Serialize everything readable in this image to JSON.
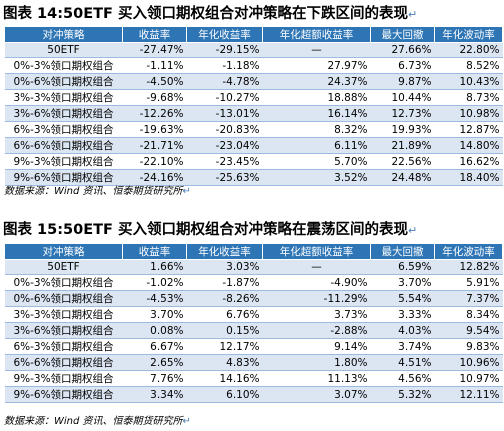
{
  "tables": [
    {
      "title": "图表 14:50ETF 买入领口期权组合对冲策略在下跌区间的表现",
      "headers": [
        "对冲策略",
        "收益率",
        "年化收益率",
        "年化超额收益率",
        "最大回撤",
        "年化波动率"
      ],
      "rows": [
        [
          "50ETF",
          "-27.47%",
          "-29.15%",
          "—",
          "27.66%",
          "22.80%"
        ],
        [
          "0%-3%领口期权组合",
          "-1.11%",
          "-1.18%",
          "27.97%",
          "6.73%",
          "8.52%"
        ],
        [
          "0%-6%领口期权组合",
          "-4.50%",
          "-4.78%",
          "24.37%",
          "9.87%",
          "10.43%"
        ],
        [
          "3%-3%领口期权组合",
          "-9.68%",
          "-10.27%",
          "18.88%",
          "10.44%",
          "8.73%"
        ],
        [
          "3%-6%领口期权组合",
          "-12.26%",
          "-13.01%",
          "16.14%",
          "12.73%",
          "10.98%"
        ],
        [
          "6%-3%领口期权组合",
          "-19.63%",
          "-20.83%",
          "8.32%",
          "19.93%",
          "12.87%"
        ],
        [
          "6%-6%领口期权组合",
          "-21.71%",
          "-23.04%",
          "6.11%",
          "21.89%",
          "14.80%"
        ],
        [
          "9%-3%领口期权组合",
          "-22.10%",
          "-23.45%",
          "5.70%",
          "22.56%",
          "16.62%"
        ],
        [
          "9%-6%领口期权组合",
          "-24.16%",
          "-25.63%",
          "3.52%",
          "24.48%",
          "18.40%"
        ]
      ],
      "source": "数据来源：Wind 资讯、恒泰期货研究所"
    },
    {
      "title": "图表 15:50ETF 买入领口期权组合对冲策略在震荡区间的表现",
      "headers": [
        "对冲策略",
        "收益率",
        "年化收益率",
        "年化超额收益率",
        "最大回撤",
        "年化波动率"
      ],
      "rows": [
        [
          "50ETF",
          "1.66%",
          "3.03%",
          "—",
          "6.59%",
          "12.82%"
        ],
        [
          "0%-3%领口期权组合",
          "-1.02%",
          "-1.87%",
          "-4.90%",
          "3.70%",
          "5.91%"
        ],
        [
          "0%-6%领口期权组合",
          "-4.53%",
          "-8.26%",
          "-11.29%",
          "5.54%",
          "7.37%"
        ],
        [
          "3%-3%领口期权组合",
          "3.70%",
          "6.76%",
          "3.73%",
          "3.33%",
          "8.34%"
        ],
        [
          "3%-6%领口期权组合",
          "0.08%",
          "0.15%",
          "-2.88%",
          "4.03%",
          "9.54%"
        ],
        [
          "6%-3%领口期权组合",
          "6.67%",
          "12.17%",
          "9.14%",
          "3.74%",
          "9.83%"
        ],
        [
          "6%-6%领口期权组合",
          "2.65%",
          "4.83%",
          "1.80%",
          "4.51%",
          "10.96%"
        ],
        [
          "9%-3%领口期权组合",
          "7.76%",
          "14.16%",
          "11.13%",
          "4.56%",
          "10.97%"
        ],
        [
          "9%-6%领口期权组合",
          "3.34%",
          "6.10%",
          "3.07%",
          "5.32%",
          "12.11%"
        ]
      ],
      "source": "数据来源：Wind 资讯、恒泰期货研究所"
    }
  ],
  "paragraph_mark": "↵",
  "colors": {
    "header_bg": "#2e75b6",
    "stripe_bg": "#dce6f2",
    "rule": "#9bbbe0"
  }
}
